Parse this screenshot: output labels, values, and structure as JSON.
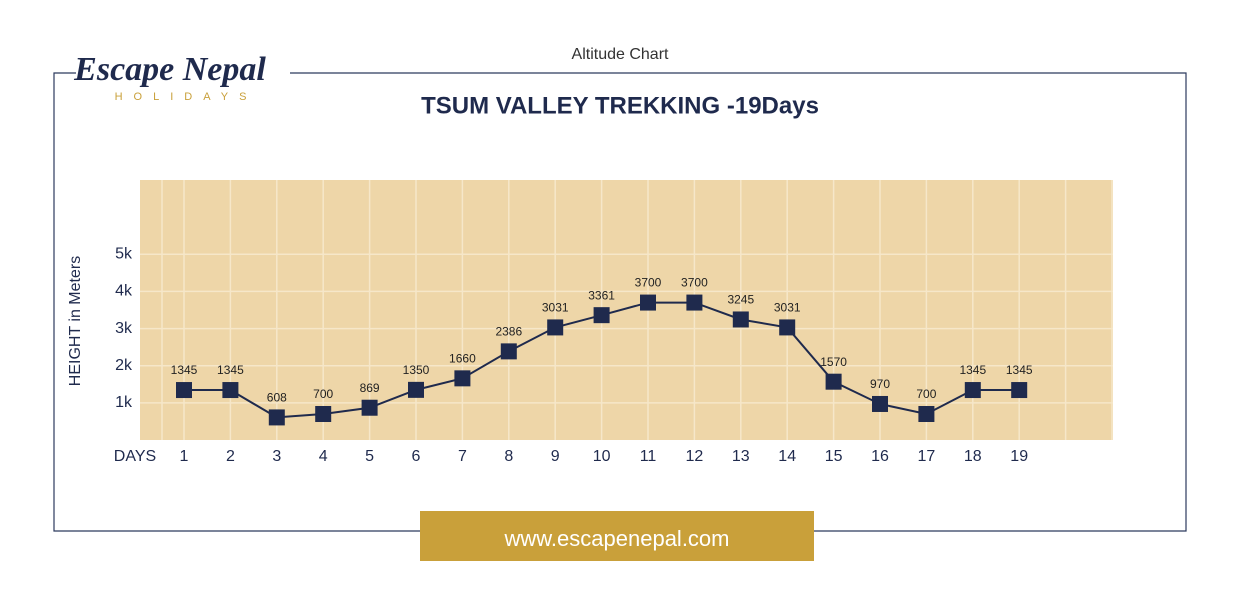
{
  "header": {
    "logo_name": "Escape Nepal",
    "logo_tagline": "HOLIDAYS",
    "caption": "Altitude Chart"
  },
  "chart_data": {
    "type": "line",
    "title": "TSUM VALLEY TREKKING -19Days",
    "y_label": "HEIGHT in Meters",
    "x_label": "DAYS",
    "categories": [
      "1",
      "2",
      "3",
      "4",
      "5",
      "6",
      "7",
      "8",
      "9",
      "10",
      "11",
      "12",
      "13",
      "14",
      "15",
      "16",
      "17",
      "18",
      "19"
    ],
    "series": [
      {
        "name": "Altitude",
        "color": "#1f2a4d",
        "values": [
          1345,
          1345,
          608,
          700,
          869,
          1350,
          1660,
          2386,
          3031,
          3361,
          3700,
          3700,
          3245,
          3031,
          1570,
          970,
          700,
          1345,
          1345
        ]
      }
    ],
    "ylim": [
      0,
      7000
    ],
    "yticks": [
      {
        "value": 1000,
        "label": "1k"
      },
      {
        "value": 2000,
        "label": "2k"
      },
      {
        "value": 3000,
        "label": "3k"
      },
      {
        "value": 4000,
        "label": "4k"
      },
      {
        "value": 5000,
        "label": "5k"
      }
    ],
    "grid": true,
    "background": "#eed6a8"
  },
  "footer": {
    "url": "www.escapenepal.com"
  }
}
